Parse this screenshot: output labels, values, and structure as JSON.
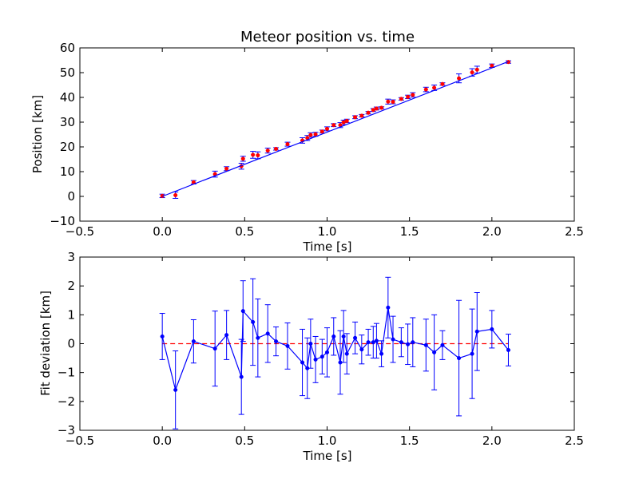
{
  "chart_data": [
    {
      "type": "scatter",
      "title": "Meteor position vs. time",
      "xlabel": "Time [s]",
      "ylabel": "Position [km]",
      "xlim": [
        -0.5,
        2.5
      ],
      "ylim": [
        -10,
        60
      ],
      "xticks": [
        "−0.5",
        "0.0",
        "0.5",
        "1.0",
        "1.5",
        "2.0",
        "2.5"
      ],
      "xtick_values": [
        -0.5,
        0.0,
        0.5,
        1.0,
        1.5,
        2.0,
        2.5
      ],
      "yticks": [
        "−10",
        "0",
        "10",
        "20",
        "30",
        "40",
        "50",
        "60"
      ],
      "ytick_values": [
        -10,
        0,
        10,
        20,
        30,
        40,
        50,
        60
      ],
      "grid": false,
      "series": [
        {
          "kind": "points",
          "color": "#ff0000",
          "x": [
            0.0,
            0.08,
            0.19,
            0.32,
            0.39,
            0.48,
            0.49,
            0.55,
            0.58,
            0.64,
            0.69,
            0.76,
            0.85,
            0.88,
            0.9,
            0.93,
            0.97,
            1.0,
            1.04,
            1.08,
            1.1,
            1.12,
            1.17,
            1.21,
            1.25,
            1.28,
            1.3,
            1.33,
            1.37,
            1.4,
            1.45,
            1.49,
            1.52,
            1.6,
            1.65,
            1.7,
            1.8,
            1.88,
            1.91,
            2.0,
            2.1
          ],
          "y": [
            0.2,
            0.5,
            5.7,
            9.0,
            11.2,
            12.2,
            15.2,
            16.8,
            16.6,
            18.5,
            19.2,
            21.1,
            22.6,
            23.6,
            24.8,
            25.1,
            26.2,
            27.3,
            28.8,
            28.8,
            29.9,
            30.5,
            32.0,
            32.6,
            33.8,
            34.9,
            35.5,
            35.8,
            38.3,
            38.2,
            39.4,
            40.2,
            41.0,
            43.2,
            43.9,
            45.4,
            47.7,
            50.1,
            51.2,
            52.8,
            54.3
          ],
          "yerr": [
            0.7,
            1.3,
            0.7,
            1.2,
            0.8,
            1.2,
            1.0,
            1.4,
            1.4,
            1.0,
            0.5,
            0.8,
            1.1,
            1.0,
            0.9,
            0.8,
            0.6,
            0.8,
            0.6,
            1.0,
            0.9,
            0.7,
            0.6,
            0.5,
            0.5,
            0.6,
            0.6,
            0.4,
            1.0,
            0.8,
            0.5,
            0.7,
            0.9,
            0.9,
            1.1,
            0.5,
            1.8,
            1.5,
            1.4,
            0.7,
            0.5
          ]
        },
        {
          "kind": "fit-line",
          "color": "#0000ff",
          "x": [
            0.0,
            2.1
          ],
          "y": [
            0.0,
            54.5
          ]
        }
      ]
    },
    {
      "type": "line",
      "title": "",
      "xlabel": "Time [s]",
      "ylabel": "Fit deviation [km]",
      "xlim": [
        -0.5,
        2.5
      ],
      "ylim": [
        -3,
        3
      ],
      "xticks": [
        "−0.5",
        "0.0",
        "0.5",
        "1.0",
        "1.5",
        "2.0",
        "2.5"
      ],
      "xtick_values": [
        -0.5,
        0.0,
        0.5,
        1.0,
        1.5,
        2.0,
        2.5
      ],
      "yticks": [
        "−3",
        "−2",
        "−1",
        "0",
        "1",
        "2",
        "3"
      ],
      "ytick_values": [
        -3,
        -2,
        -1,
        0,
        1,
        2,
        3
      ],
      "grid": false,
      "reference_line": {
        "y": 0,
        "color": "#ff0000",
        "style": "dashed"
      },
      "series": [
        {
          "kind": "line-with-errorbars",
          "color": "#0000ff",
          "x": [
            0.0,
            0.08,
            0.19,
            0.32,
            0.39,
            0.48,
            0.49,
            0.55,
            0.58,
            0.64,
            0.69,
            0.76,
            0.85,
            0.88,
            0.9,
            0.93,
            0.97,
            1.0,
            1.04,
            1.08,
            1.1,
            1.12,
            1.17,
            1.21,
            1.25,
            1.28,
            1.3,
            1.33,
            1.37,
            1.4,
            1.45,
            1.49,
            1.52,
            1.6,
            1.65,
            1.7,
            1.8,
            1.88,
            1.91,
            2.0,
            2.1
          ],
          "y": [
            0.25,
            -1.6,
            0.08,
            -0.17,
            0.3,
            -1.15,
            1.13,
            0.75,
            0.2,
            0.35,
            0.08,
            -0.08,
            -0.65,
            -0.85,
            0.0,
            -0.55,
            -0.45,
            -0.3,
            0.25,
            -0.65,
            0.25,
            -0.35,
            0.2,
            -0.2,
            0.05,
            0.05,
            0.1,
            -0.35,
            1.25,
            0.15,
            0.05,
            -0.02,
            0.05,
            -0.05,
            -0.3,
            -0.05,
            -0.5,
            -0.35,
            0.42,
            0.5,
            -0.22
          ],
          "yerr": [
            0.8,
            1.35,
            0.75,
            1.3,
            0.85,
            1.3,
            1.05,
            1.5,
            1.35,
            1.0,
            0.5,
            0.8,
            1.15,
            1.05,
            0.85,
            0.8,
            0.6,
            0.85,
            0.65,
            1.1,
            0.9,
            0.7,
            0.55,
            0.5,
            0.45,
            0.55,
            0.6,
            0.45,
            1.05,
            0.8,
            0.5,
            0.7,
            0.85,
            0.9,
            1.3,
            0.5,
            2.0,
            1.55,
            1.35,
            0.65,
            0.55
          ]
        }
      ]
    }
  ]
}
